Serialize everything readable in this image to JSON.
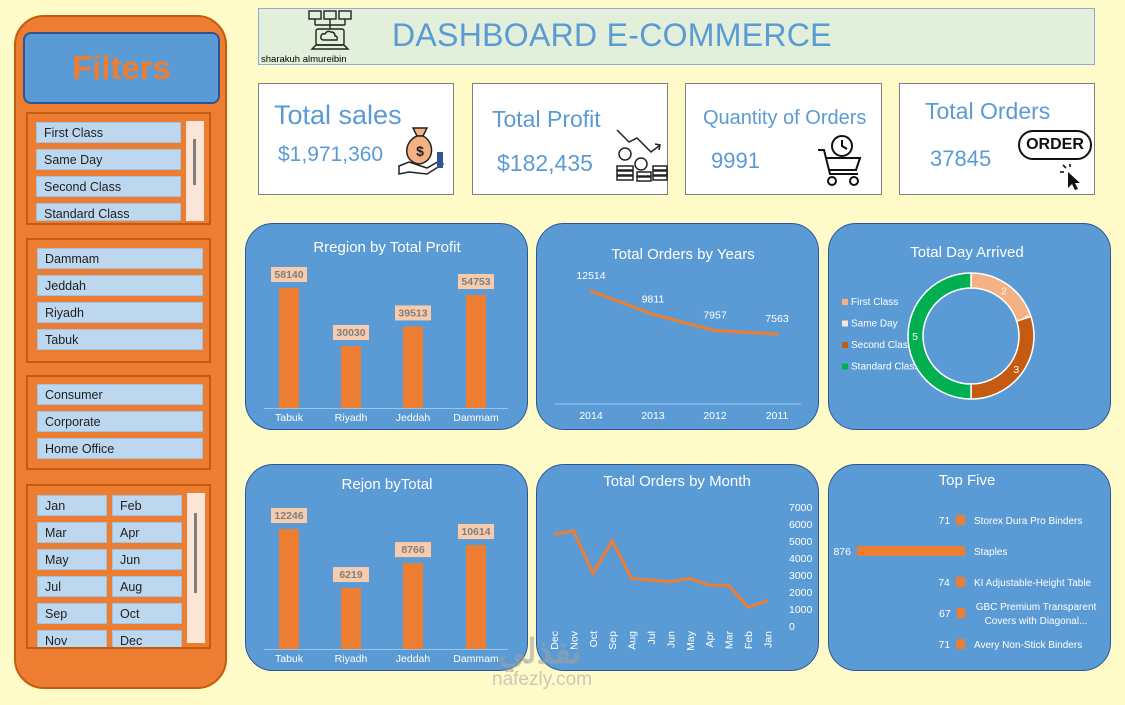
{
  "colors": {
    "accent_orange": "#ed7d31",
    "panel_blue": "#5b9bd5",
    "bg": "#fffbc8",
    "label_box": "#f8cbad",
    "green": "#00b050",
    "dark_orange": "#c55a11"
  },
  "header": {
    "title": "DASHBOARD E-COMMERCE",
    "author": "sharakuh almureibin",
    "logo_icon": "network-laptop-icon"
  },
  "filters": {
    "title": "Filters",
    "ship_mode": [
      "First Class",
      "Same Day",
      "Second Class",
      "Standard Class"
    ],
    "region": [
      "Dammam",
      "Jeddah",
      "Riyadh",
      "Tabuk"
    ],
    "segment": [
      "Consumer",
      "Corporate",
      "Home Office"
    ],
    "months": [
      [
        "Jan",
        "Feb"
      ],
      [
        "Mar",
        "Apr"
      ],
      [
        "May",
        "Jun"
      ],
      [
        "Jul",
        "Aug"
      ],
      [
        "Sep",
        "Oct"
      ],
      [
        "Nov",
        "Dec"
      ]
    ]
  },
  "kpis": {
    "sales": {
      "title": "Total sales",
      "value": "$1,971,360",
      "icon": "money-bag-hand-icon"
    },
    "profit": {
      "title": "Total Profit",
      "value": "$182,435",
      "icon": "coins-growth-chart-icon"
    },
    "quantity": {
      "title": "Quantity of Orders",
      "value": "9991",
      "icon": "shopping-cart-clock-icon"
    },
    "orders": {
      "title": "Total Orders",
      "value": "37845",
      "icon": "order-button-icon",
      "badge": "ORDER"
    }
  },
  "chart_data": [
    {
      "id": "region_profit",
      "type": "bar",
      "title": "Rregion by Total Profit",
      "categories": [
        "Tabuk",
        "Riyadh",
        "Jeddah",
        "Dammam"
      ],
      "values": [
        58140,
        30030,
        39513,
        54753
      ],
      "color": "#ed7d31"
    },
    {
      "id": "orders_years",
      "type": "line",
      "title": "Total Orders by Years",
      "categories": [
        "2014",
        "2013",
        "2012",
        "2011"
      ],
      "values": [
        12514,
        9811,
        7957,
        7563
      ],
      "color": "#ed7d31"
    },
    {
      "id": "day_arrived",
      "type": "pie",
      "title": "Total Day Arrived",
      "legend": [
        "First Class",
        "Same Day",
        "Second Class",
        "Standard Class"
      ],
      "values": [
        2,
        0,
        3,
        5
      ],
      "colors": [
        "#f4b183",
        "#fbe5d6",
        "#c55a11",
        "#00b050"
      ],
      "legend_position": "left"
    },
    {
      "id": "region_total",
      "type": "bar",
      "title": "Rejon byTotal",
      "categories": [
        "Tabuk",
        "Riyadh",
        "Jeddah",
        "Dammam"
      ],
      "values": [
        12246,
        6219,
        8766,
        10614
      ],
      "color": "#ed7d31"
    },
    {
      "id": "orders_month",
      "type": "line",
      "title": "Total Orders by Month",
      "categories": [
        "Dec",
        "Nov",
        "Oct",
        "Sep",
        "Aug",
        "Jul",
        "Jun",
        "May",
        "Apr",
        "Mar",
        "Feb",
        "Jan"
      ],
      "values": [
        5400,
        5600,
        3100,
        5000,
        2800,
        2700,
        2600,
        2800,
        2400,
        2400,
        1100,
        1500
      ],
      "y_ticks": [
        "7000",
        "6000",
        "5000",
        "4000",
        "3000",
        "2000",
        "1000",
        "0"
      ],
      "ylim": [
        0,
        7000
      ],
      "color": "#ed7d31"
    },
    {
      "id": "top_five",
      "type": "bar",
      "orientation": "horizontal",
      "title": "Top Five",
      "categories": [
        "Storex Dura Pro Binders",
        "Staples",
        "KI Adjustable-Height Table",
        "GBC Premium Transparent Covers with Diagonal...",
        "Avery Non-Stick Binders"
      ],
      "category_lines": [
        [
          "Storex Dura Pro Binders"
        ],
        [
          "Staples"
        ],
        [
          "KI Adjustable-Height Table"
        ],
        [
          "GBC Premium Transparent",
          "Covers with Diagonal..."
        ],
        [
          "Avery Non-Stick Binders"
        ]
      ],
      "values": [
        71,
        876,
        74,
        67,
        71
      ],
      "color": "#ed7d31"
    }
  ],
  "watermark": {
    "arabic": "نفذلي",
    "latin": "nafezly.com"
  }
}
